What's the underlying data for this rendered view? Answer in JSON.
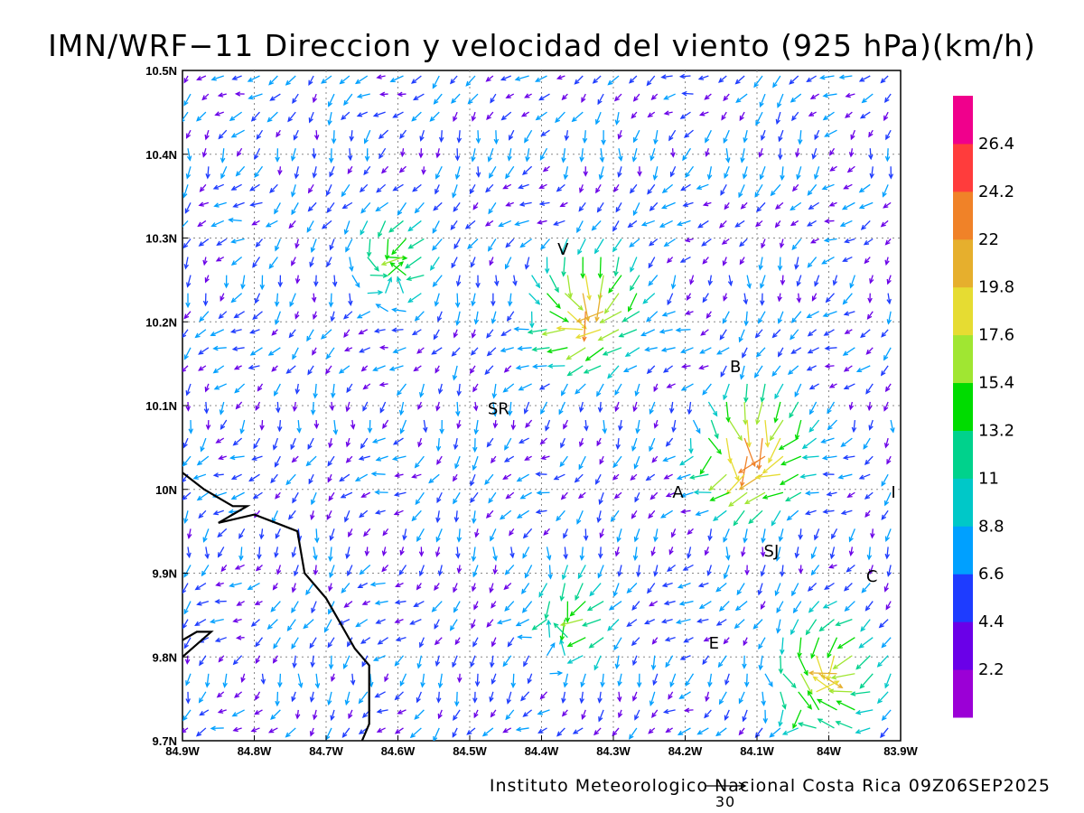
{
  "title": "IMN/WRF−11 Direccion y velocidad del viento (925 hPa)(km/h)",
  "footer": "Instituto Meteorologico Nacional Costa Rica 09Z06SEP2025",
  "reference_vector": {
    "label": "30",
    "speed": 30
  },
  "map": {
    "lon_range": [
      -84.9,
      -83.9
    ],
    "lat_range": [
      9.7,
      10.5
    ],
    "grid": "dotted",
    "x_ticks": [
      "84.9W",
      "84.8W",
      "84.7W",
      "84.6W",
      "84.5W",
      "84.4W",
      "84.3W",
      "84.2W",
      "84.1W",
      "84W",
      "83.9W"
    ],
    "y_ticks": [
      "9.7N",
      "9.8N",
      "9.9N",
      "10N",
      "10.1N",
      "10.2N",
      "10.3N",
      "10.4N",
      "10.5N"
    ],
    "cities": [
      {
        "label": "V",
        "lon": -84.37,
        "lat": 10.28
      },
      {
        "label": "B",
        "lon": -84.13,
        "lat": 10.14
      },
      {
        "label": "SR",
        "lon": -84.46,
        "lat": 10.09
      },
      {
        "label": "A",
        "lon": -84.21,
        "lat": 9.99
      },
      {
        "label": "I",
        "lon": -83.91,
        "lat": 9.99
      },
      {
        "label": "SJ",
        "lon": -84.08,
        "lat": 9.92
      },
      {
        "label": "C",
        "lon": -83.94,
        "lat": 9.89
      },
      {
        "label": "E",
        "lon": -84.16,
        "lat": 9.81
      }
    ],
    "coastline": [
      [
        -84.9,
        10.02
      ],
      [
        -84.87,
        10.0
      ],
      [
        -84.83,
        9.98
      ],
      [
        -84.81,
        9.98
      ],
      [
        -84.85,
        9.96
      ],
      [
        -84.8,
        9.97
      ],
      [
        -84.77,
        9.96
      ],
      [
        -84.74,
        9.95
      ],
      [
        -84.73,
        9.9
      ],
      [
        -84.7,
        9.87
      ],
      [
        -84.68,
        9.84
      ],
      [
        -84.66,
        9.81
      ],
      [
        -84.64,
        9.79
      ],
      [
        -84.64,
        9.75
      ],
      [
        -84.64,
        9.72
      ],
      [
        -84.65,
        9.7
      ]
    ],
    "coastline2": [
      [
        -84.9,
        9.8
      ],
      [
        -84.86,
        9.83
      ],
      [
        -84.88,
        9.83
      ],
      [
        -84.9,
        9.82
      ]
    ]
  },
  "colorbar": {
    "labels": [
      "2.2",
      "4.4",
      "6.6",
      "8.8",
      "11",
      "13.2",
      "15.4",
      "17.6",
      "19.8",
      "22",
      "24.2",
      "26.4"
    ],
    "colors": [
      "#9b00d6",
      "#6a00e8",
      "#1e3cff",
      "#00a0ff",
      "#00c8c8",
      "#00d28c",
      "#00dc00",
      "#a0e632",
      "#e6dc32",
      "#e6af2d",
      "#f08228",
      "#ff3c3c",
      "#f0008c"
    ]
  }
}
